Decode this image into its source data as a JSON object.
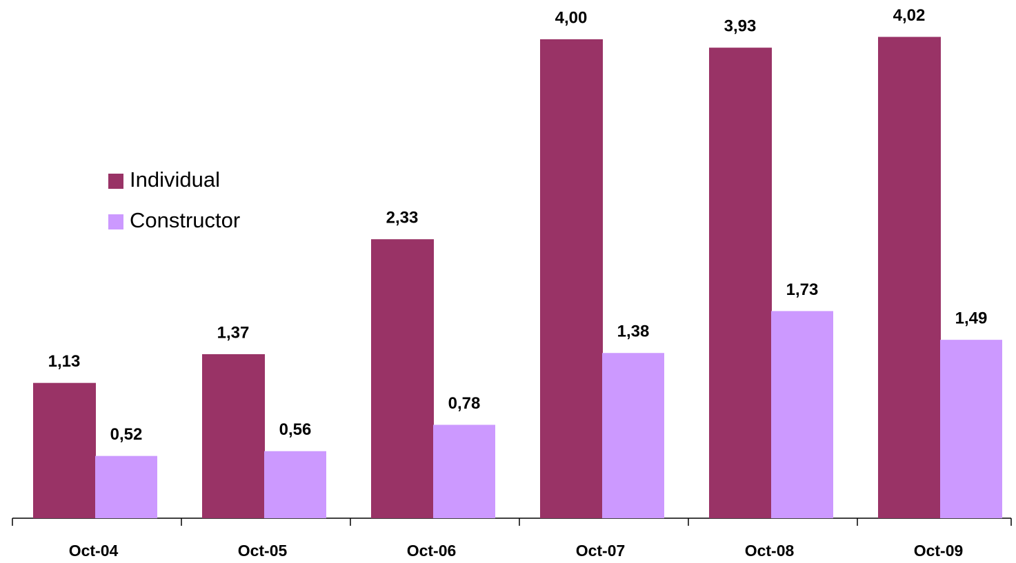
{
  "chart_data": {
    "type": "bar",
    "categories": [
      "Oct-04",
      "Oct-05",
      "Oct-06",
      "Oct-07",
      "Oct-08",
      "Oct-09"
    ],
    "series": [
      {
        "name": "Individual",
        "color": "#993366",
        "values": [
          1.13,
          1.37,
          2.33,
          4.0,
          3.93,
          4.02
        ],
        "value_labels": [
          "1,13",
          "1,37",
          "2,33",
          "4,00",
          "3,93",
          "4,02"
        ]
      },
      {
        "name": "Constructor",
        "color": "#cc99ff",
        "values": [
          0.52,
          0.56,
          0.78,
          1.38,
          1.73,
          1.49
        ],
        "value_labels": [
          "0,52",
          "0,56",
          "0,78",
          "1,38",
          "1,73",
          "1,49"
        ]
      }
    ],
    "legend": "left"
  }
}
